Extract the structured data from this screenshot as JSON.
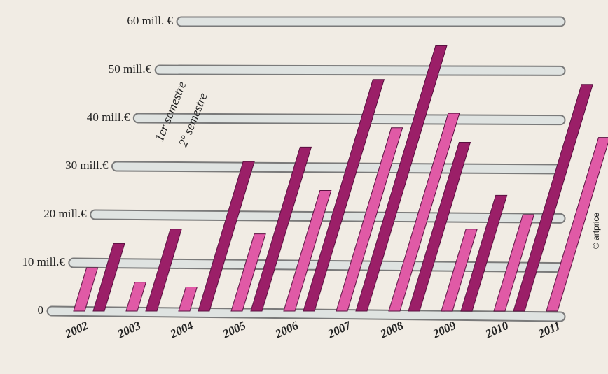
{
  "chart_data": {
    "type": "bar",
    "categories": [
      "2002",
      "2003",
      "2004",
      "2005",
      "2006",
      "2007",
      "2008",
      "2009",
      "2010",
      "2011"
    ],
    "series": [
      {
        "name": "1er semestre",
        "color": "#e05aa6",
        "values": [
          9,
          6,
          5,
          16,
          25,
          38,
          41,
          17,
          20,
          36
        ]
      },
      {
        "name": "2º semestre",
        "color": "#9b1f68",
        "values": [
          14,
          17,
          31,
          34,
          48,
          55,
          35,
          24,
          47,
          null
        ]
      }
    ],
    "ylim": [
      0,
      60
    ],
    "yticks": [
      0,
      {
        "value": 10,
        "label": "10 mill.€"
      },
      {
        "value": 20,
        "label": "20 mill.€"
      },
      {
        "value": 30,
        "label": "30 mill.€"
      },
      {
        "value": 40,
        "label": "40 mill.€"
      },
      {
        "value": 50,
        "label": "50 mill.€"
      },
      {
        "value": 60,
        "label": "60 mill. €"
      }
    ],
    "grid": true,
    "credit": "© artprice"
  }
}
